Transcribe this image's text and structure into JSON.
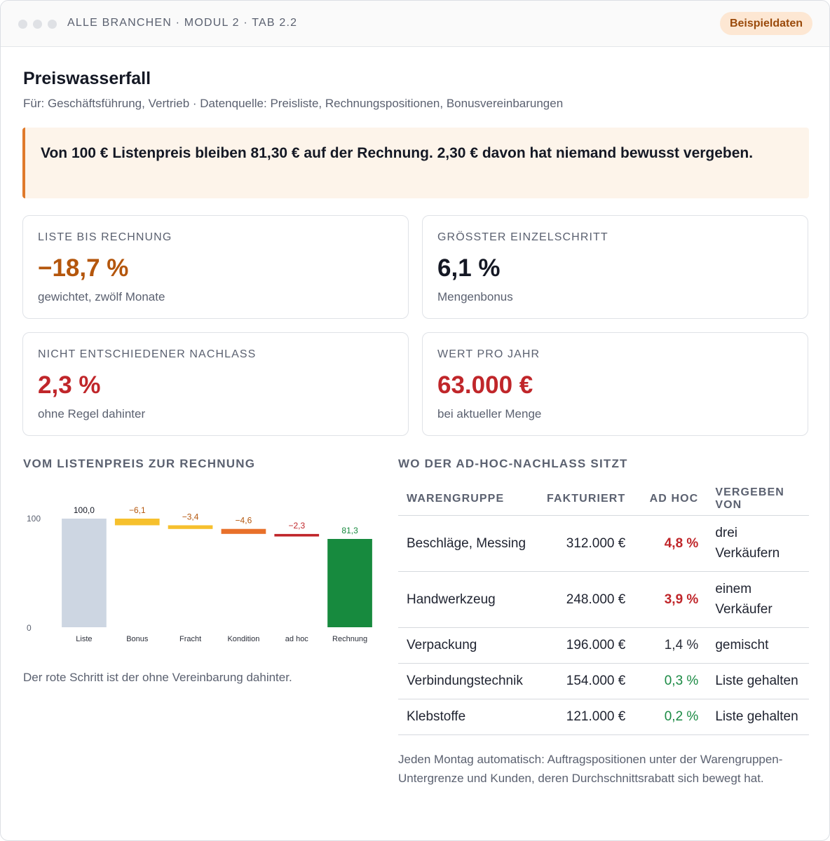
{
  "window": {
    "breadcrumb": "ALLE BRANCHEN · MODUL 2 · TAB 2.2",
    "badge": "Beispieldaten"
  },
  "header": {
    "title": "Preiswasserfall",
    "subtitle": "Für: Geschäftsführung, Vertrieb · Datenquelle: Preisliste, Rechnungspositionen, Bonusvereinbarungen"
  },
  "callout": {
    "text": "Von 100 € Listenpreis bleiben 81,30 € auf der Rechnung. 2,30 € davon hat niemand bewusst vergeben."
  },
  "kpis": [
    {
      "label": "LISTE BIS RECHNUNG",
      "value": "−18,7 %",
      "note": "gewichtet, zwölf Monate",
      "color": "#b4560c"
    },
    {
      "label": "GRÖSSTER EINZELSCHRITT",
      "value": "6,1 %",
      "note": "Mengenbonus",
      "color": "#141824"
    },
    {
      "label": "NICHT ENTSCHIEDENER NACHLASS",
      "value": "2,3 %",
      "note": "ohne Regel dahinter",
      "color": "#c0262a"
    },
    {
      "label": "WERT PRO JAHR",
      "value": "63.000 €",
      "note": "bei aktueller Menge",
      "color": "#c0262a"
    }
  ],
  "chart_section": {
    "heading": "VOM LISTENPREIS ZUR RECHNUNG",
    "note": "Der rote Schritt ist der ohne Vereinbarung dahinter."
  },
  "chart_data": {
    "type": "bar",
    "subtype": "waterfall",
    "categories": [
      "Liste",
      "Bonus",
      "Fracht",
      "Kondition",
      "ad hoc",
      "Rechnung"
    ],
    "values": [
      100.0,
      -6.1,
      -3.4,
      -4.6,
      -2.3,
      81.3
    ],
    "value_labels": [
      "100,0",
      "−6,1",
      "−3,4",
      "−4,6",
      "−2,3",
      "81,3"
    ],
    "y_ticks": [
      "0",
      "100"
    ],
    "ylim": [
      0,
      100
    ],
    "colors": [
      "#cdd6e2",
      "#f6c02d",
      "#f6c02d",
      "#e8702a",
      "#c0262a",
      "#178a3e"
    ],
    "label_colors": [
      "#141824",
      "#b4560c",
      "#b4560c",
      "#b4560c",
      "#c0262a",
      "#178a3e"
    ],
    "grid": false
  },
  "table_section": {
    "heading": "WO DER AD-HOC-NACHLASS SITZT",
    "columns": [
      "WARENGRUPPE",
      "FAKTURIERT",
      "AD HOC",
      "VERGEBEN VON"
    ],
    "rows": [
      {
        "group": "Beschläge, Messing",
        "billed": "312.000 €",
        "adhoc": "4,8 %",
        "by": "drei Verkäufern",
        "tone": "red"
      },
      {
        "group": "Handwerkzeug",
        "billed": "248.000 €",
        "adhoc": "3,9 %",
        "by": "einem Verkäufer",
        "tone": "red"
      },
      {
        "group": "Verpackung",
        "billed": "196.000 €",
        "adhoc": "1,4 %",
        "by": "gemischt",
        "tone": "gray"
      },
      {
        "group": "Verbindungstechnik",
        "billed": "154.000 €",
        "adhoc": "0,3 %",
        "by": "Liste gehalten",
        "tone": "green"
      },
      {
        "group": "Klebstoffe",
        "billed": "121.000 €",
        "adhoc": "0,2 %",
        "by": "Liste gehalten",
        "tone": "green"
      }
    ],
    "note": "Jeden Montag automatisch: Auftragspositionen unter der Warengruppen-Untergrenze und Kunden, deren Durchschnittsrabatt sich bewegt hat."
  }
}
